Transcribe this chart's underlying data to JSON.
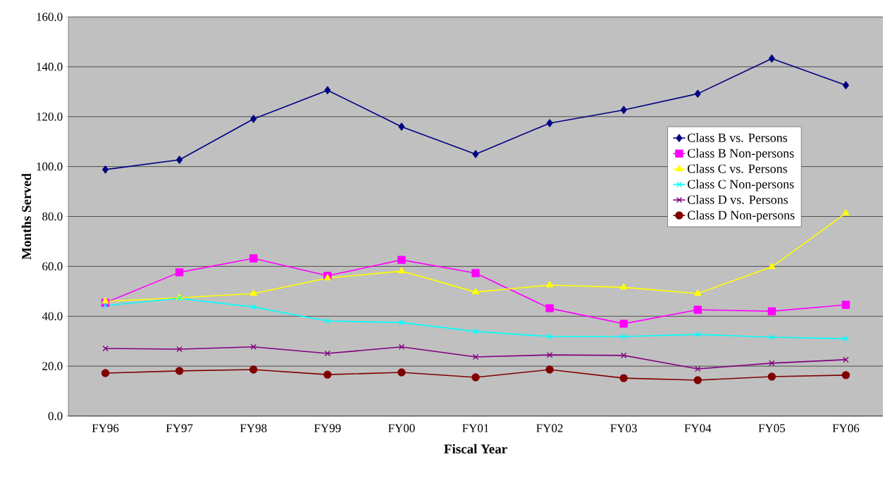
{
  "chart_data": {
    "type": "line",
    "xlabel": "Fiscal Year",
    "ylabel": "Months Served",
    "categories": [
      "FY96",
      "FY97",
      "FY98",
      "FY99",
      "FY00",
      "FY01",
      "FY02",
      "FY03",
      "FY04",
      "FY05",
      "FY06"
    ],
    "series": [
      {
        "name": "Class B vs. Persons",
        "color": "#000080",
        "marker": "diamond",
        "values": [
          98.8,
          102.7,
          119.1,
          130.6,
          116.0,
          105.0,
          117.4,
          122.7,
          129.2,
          143.3,
          132.6
        ]
      },
      {
        "name": "Class B Non-persons",
        "color": "#ff00ff",
        "marker": "square",
        "values": [
          45.4,
          57.6,
          63.2,
          56.2,
          62.6,
          57.3,
          43.2,
          37.0,
          42.6,
          42.0,
          44.6
        ]
      },
      {
        "name": "Class C vs. Persons",
        "color": "#ffff00",
        "marker": "triangle",
        "values": [
          46.0,
          47.4,
          49.1,
          55.3,
          58.1,
          49.7,
          52.5,
          51.6,
          49.1,
          59.8,
          81.3
        ]
      },
      {
        "name": "Class C Non-persons",
        "color": "#00ffff",
        "marker": "cross",
        "values": [
          44.3,
          47.1,
          43.7,
          38.1,
          37.5,
          33.9,
          31.9,
          31.9,
          32.7,
          31.6,
          31.0
        ]
      },
      {
        "name": "Class D vs. Persons",
        "color": "#800080",
        "marker": "cross",
        "values": [
          27.1,
          26.8,
          27.7,
          25.1,
          27.7,
          23.7,
          24.5,
          24.3,
          18.9,
          21.2,
          22.6
        ]
      },
      {
        "name": "Class D Non-persons",
        "color": "#800000",
        "marker": "circle",
        "values": [
          17.2,
          18.1,
          18.6,
          16.6,
          17.5,
          15.5,
          18.6,
          15.2,
          14.4,
          15.8,
          16.4
        ]
      }
    ],
    "ylim": [
      0,
      160
    ],
    "yticks": [
      {
        "value": 0,
        "label": "0.0"
      },
      {
        "value": 20,
        "label": "20.0"
      },
      {
        "value": 40,
        "label": "40.0"
      },
      {
        "value": 60,
        "label": "60.0"
      },
      {
        "value": 80,
        "label": "80.0"
      },
      {
        "value": 100,
        "label": "100.0"
      },
      {
        "value": 120,
        "label": "120.0"
      },
      {
        "value": 140,
        "label": "140.0"
      },
      {
        "value": 160,
        "label": "160.0"
      }
    ],
    "grid": "y",
    "legend": "right",
    "line_style": "solid"
  }
}
